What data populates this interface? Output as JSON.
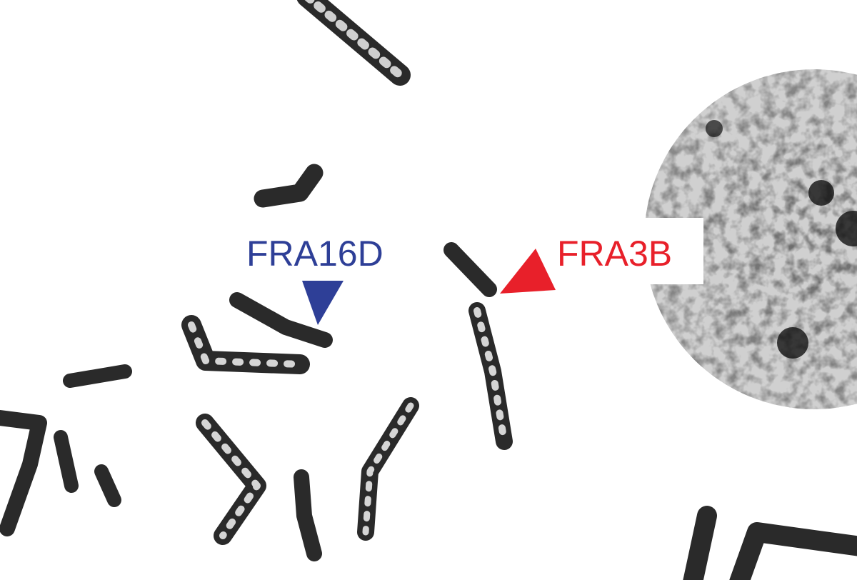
{
  "annotations": [
    {
      "text": "FRA16D"
    },
    {
      "text": "FRA3B"
    }
  ]
}
